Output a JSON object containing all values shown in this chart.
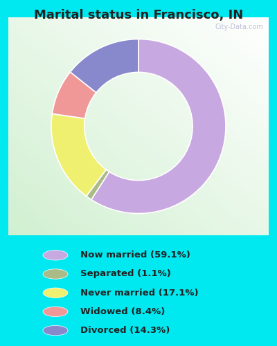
{
  "title": "Marital status in Francisco, IN",
  "slices": [
    59.1,
    1.1,
    17.1,
    8.4,
    14.3
  ],
  "colors": [
    "#C8A8E0",
    "#AABB88",
    "#F0F070",
    "#F09898",
    "#8888CC"
  ],
  "labels": [
    "Now married (59.1%)",
    "Separated (1.1%)",
    "Never married (17.1%)",
    "Widowed (8.4%)",
    "Divorced (14.3%)"
  ],
  "legend_colors": [
    "#C8A8E0",
    "#AABB88",
    "#F0F070",
    "#F09898",
    "#8888CC"
  ],
  "bg_outer": "#00E8F0",
  "watermark": "City-Data.com",
  "donut_width": 0.38,
  "start_angle": 90
}
